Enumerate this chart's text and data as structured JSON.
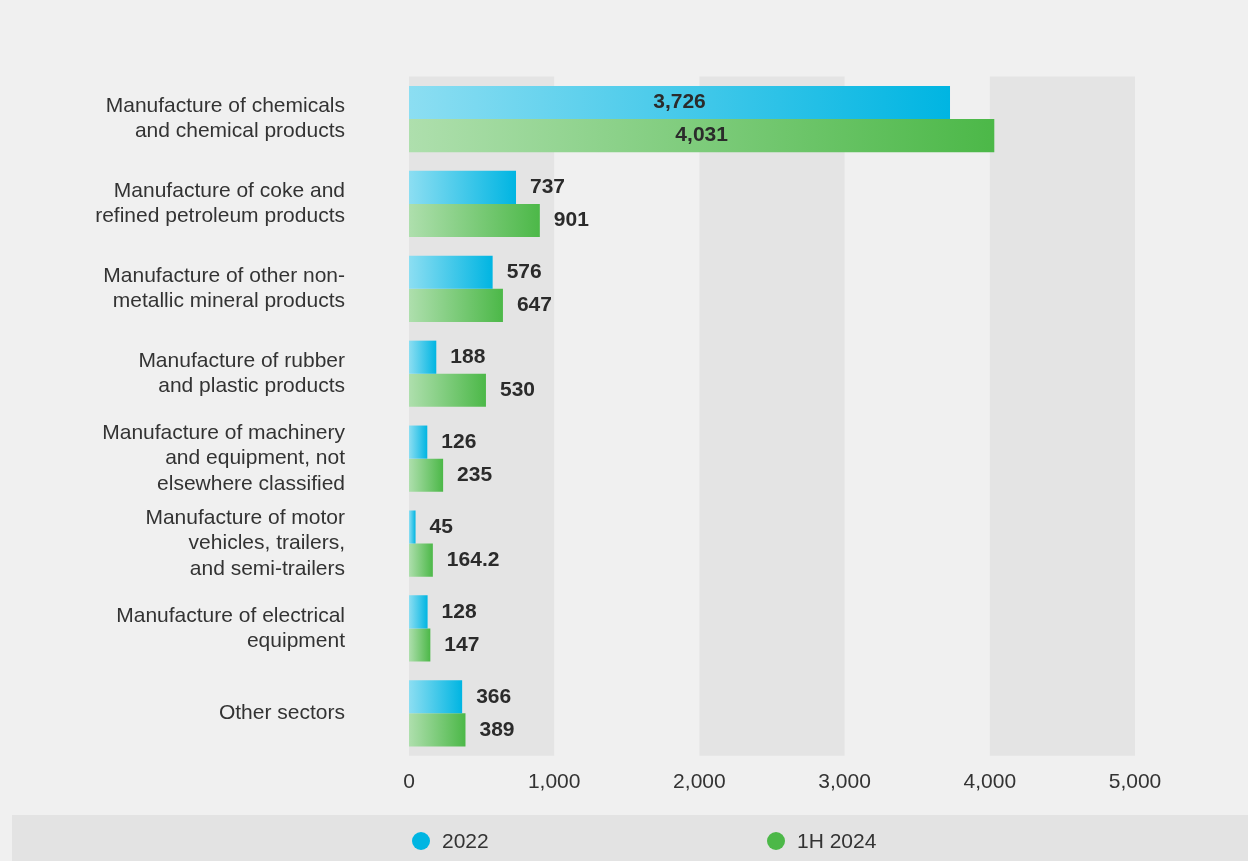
{
  "chart_data": {
    "type": "bar",
    "orientation": "horizontal",
    "categories": [
      "Manufacture of chemicals\nand chemical products",
      "Manufacture of coke and\nrefined petroleum products",
      "Manufacture of other non-\nmetallic mineral products",
      "Manufacture of rubber\nand plastic products",
      "Manufacture of machinery\nand equipment, not\nelsewhere classified",
      "Manufacture of motor\nvehicles, trailers,\nand semi-trailers",
      "Manufacture of electrical\nequipment",
      "Other sectors"
    ],
    "series": [
      {
        "name": "2022",
        "color": "#00b5e2",
        "values": [
          3726,
          737,
          576,
          188,
          126,
          45,
          128,
          366
        ],
        "value_labels": [
          "3,726",
          "737",
          "576",
          "188",
          "126",
          "45",
          "128",
          "366"
        ]
      },
      {
        "name": "1H 2024",
        "color": "#4cb848",
        "values": [
          4031,
          901,
          647,
          530,
          235,
          164.2,
          147,
          389
        ],
        "value_labels": [
          "4,031",
          "901",
          "647",
          "530",
          "235",
          "164.2",
          "147",
          "389"
        ]
      }
    ],
    "xlim": [
      0,
      5000
    ],
    "xticks": [
      0,
      {
        "value": 1000,
        "label": "1,000"
      },
      {
        "value": 2000,
        "label": "2,000"
      },
      {
        "value": 3000,
        "label": "3,000"
      },
      {
        "value": 4000,
        "label": "4,000"
      },
      {
        "value": 5000,
        "label": "5,000"
      }
    ],
    "bands": [
      {
        "axis": "x",
        "from": 0,
        "to": 1000,
        "color": "#e4e4e4"
      },
      {
        "axis": "x",
        "from": 2000,
        "to": 3000,
        "color": "#e4e4e4"
      },
      {
        "axis": "x",
        "from": 4000,
        "to": 5000,
        "color": "#e4e4e4"
      }
    ],
    "grid": false,
    "legend": "bottom"
  }
}
